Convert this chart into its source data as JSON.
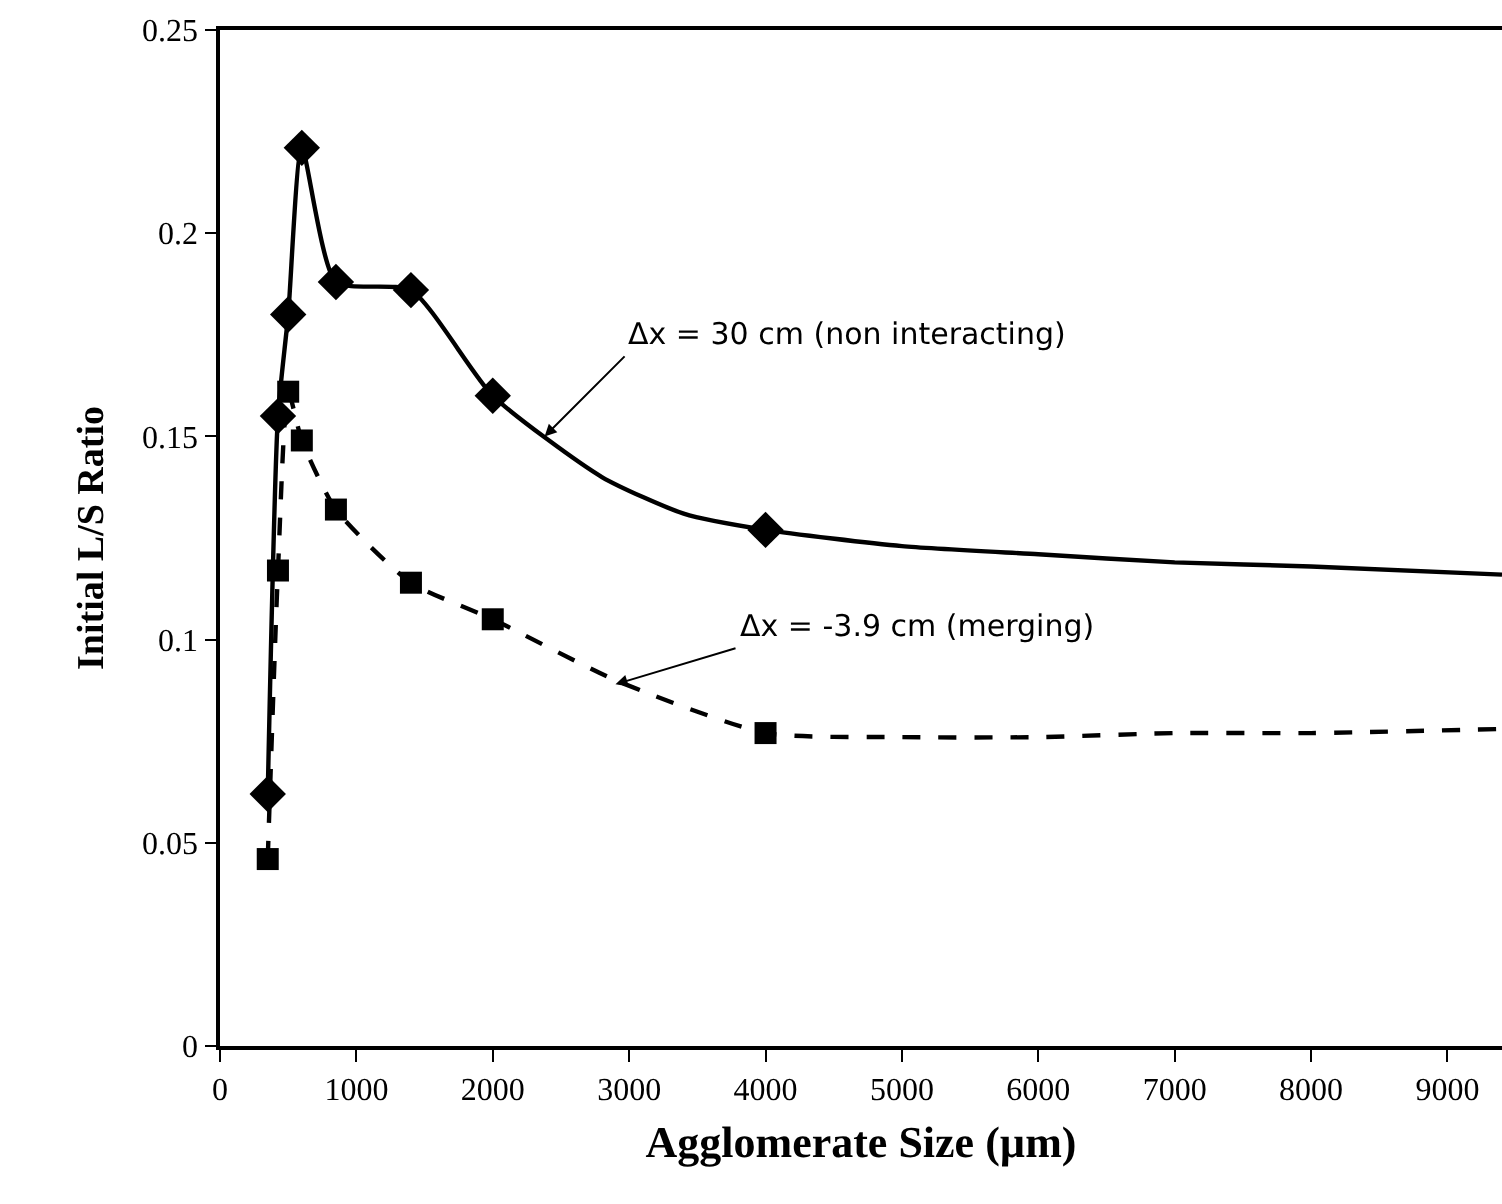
{
  "chart_data": {
    "type": "line",
    "xlabel": "Agglomerate Size (µm)",
    "ylabel": "Initial L/S Ratio",
    "xlim": [
      0,
      9400
    ],
    "xticks": [
      0,
      1000,
      2000,
      3000,
      4000,
      5000,
      6000,
      7000,
      8000,
      9000
    ],
    "ylim": [
      0,
      0.25
    ],
    "yticks": [
      0,
      0.05,
      0.1,
      0.15,
      0.2,
      0.25
    ],
    "grid": false,
    "series": [
      {
        "color": "#000000",
        "marker": "none",
        "line_style": "solid",
        "x": [
          350,
          425,
          500,
          600,
          850,
          1400,
          2000,
          2800,
          3400,
          4000,
          5000,
          6000,
          7000,
          8000,
          9400
        ],
        "values": [
          0.062,
          0.155,
          0.18,
          0.221,
          0.188,
          0.186,
          0.16,
          0.14,
          0.131,
          0.127,
          0.123,
          0.121,
          0.119,
          0.118,
          0.116
        ]
      },
      {
        "color": "#000000",
        "marker": "none",
        "line_style": "dashed",
        "x": [
          350,
          425,
          500,
          600,
          850,
          1400,
          2000,
          2900,
          4000,
          5000,
          6000,
          7000,
          8000,
          9400
        ],
        "values": [
          0.046,
          0.117,
          0.161,
          0.149,
          0.132,
          0.114,
          0.105,
          0.09,
          0.077,
          0.076,
          0.076,
          0.077,
          0.077,
          0.078
        ]
      },
      {
        "type": "scatter",
        "color": "#000000",
        "marker": "diamond",
        "x": [
          350,
          425,
          500,
          600,
          850,
          1400,
          2000,
          4000
        ],
        "values": [
          0.062,
          0.155,
          0.18,
          0.221,
          0.188,
          0.186,
          0.16,
          0.127
        ]
      },
      {
        "type": "scatter",
        "color": "#000000",
        "marker": "square",
        "x": [
          350,
          425,
          500,
          600,
          850,
          1400,
          2000,
          4000
        ],
        "values": [
          0.046,
          0.117,
          0.161,
          0.149,
          0.132,
          0.114,
          0.105,
          0.077
        ]
      }
    ],
    "annotations": [
      {
        "text": "Δx = 30 cm (non interacting)",
        "x": 2380,
        "y": 0.15
      },
      {
        "text": "Δx = -3.9 cm (merging)",
        "x": 2900,
        "y": 0.089
      }
    ]
  }
}
